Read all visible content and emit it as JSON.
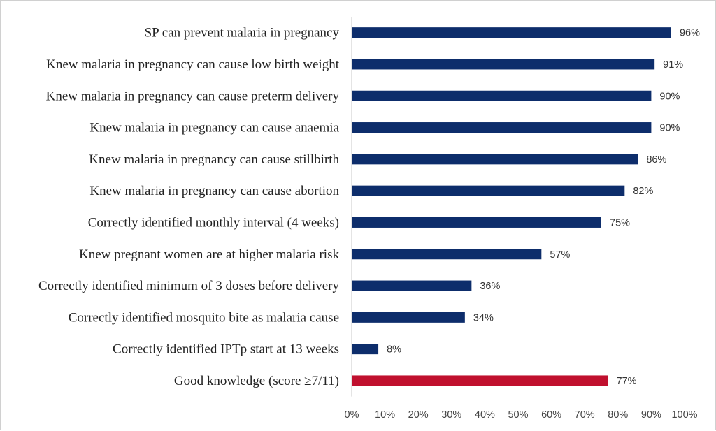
{
  "chart_data": {
    "type": "bar",
    "orientation": "horizontal",
    "categories": [
      "SP can prevent malaria in pregnancy",
      "Knew malaria in pregnancy can cause low birth weight",
      "Knew malaria in pregnancy can cause preterm delivery",
      "Knew malaria in pregnancy can cause anaemia",
      "Knew malaria in pregnancy can cause stillbirth",
      "Knew malaria in pregnancy can cause abortion",
      "Correctly identified monthly interval (4 weeks)",
      "Knew pregnant women are at higher malaria risk",
      "Correctly identified minimum of 3 doses before delivery",
      "Correctly identified mosquito bite as malaria cause",
      "Correctly identified IPTp start at 13 weeks",
      "Good knowledge (score ≥7/11)"
    ],
    "values": [
      96,
      91,
      90,
      90,
      86,
      82,
      75,
      57,
      36,
      34,
      8,
      77
    ],
    "value_labels": [
      "96%",
      "91%",
      "90%",
      "90%",
      "86%",
      "82%",
      "75%",
      "57%",
      "36%",
      "34%",
      "8%",
      "77%"
    ],
    "bar_colors": [
      "#0d2d6b",
      "#0d2d6b",
      "#0d2d6b",
      "#0d2d6b",
      "#0d2d6b",
      "#0d2d6b",
      "#0d2d6b",
      "#0d2d6b",
      "#0d2d6b",
      "#0d2d6b",
      "#0d2d6b",
      "#c0102e"
    ],
    "xlim": [
      0,
      100
    ],
    "xticks": [
      0,
      10,
      20,
      30,
      40,
      50,
      60,
      70,
      80,
      90,
      100
    ],
    "xtick_labels": [
      "0%",
      "10%",
      "20%",
      "30%",
      "40%",
      "50%",
      "60%",
      "70%",
      "80%",
      "90%",
      "100%"
    ],
    "grid": false,
    "legend": "none",
    "title": "",
    "xlabel": "",
    "ylabel": ""
  }
}
